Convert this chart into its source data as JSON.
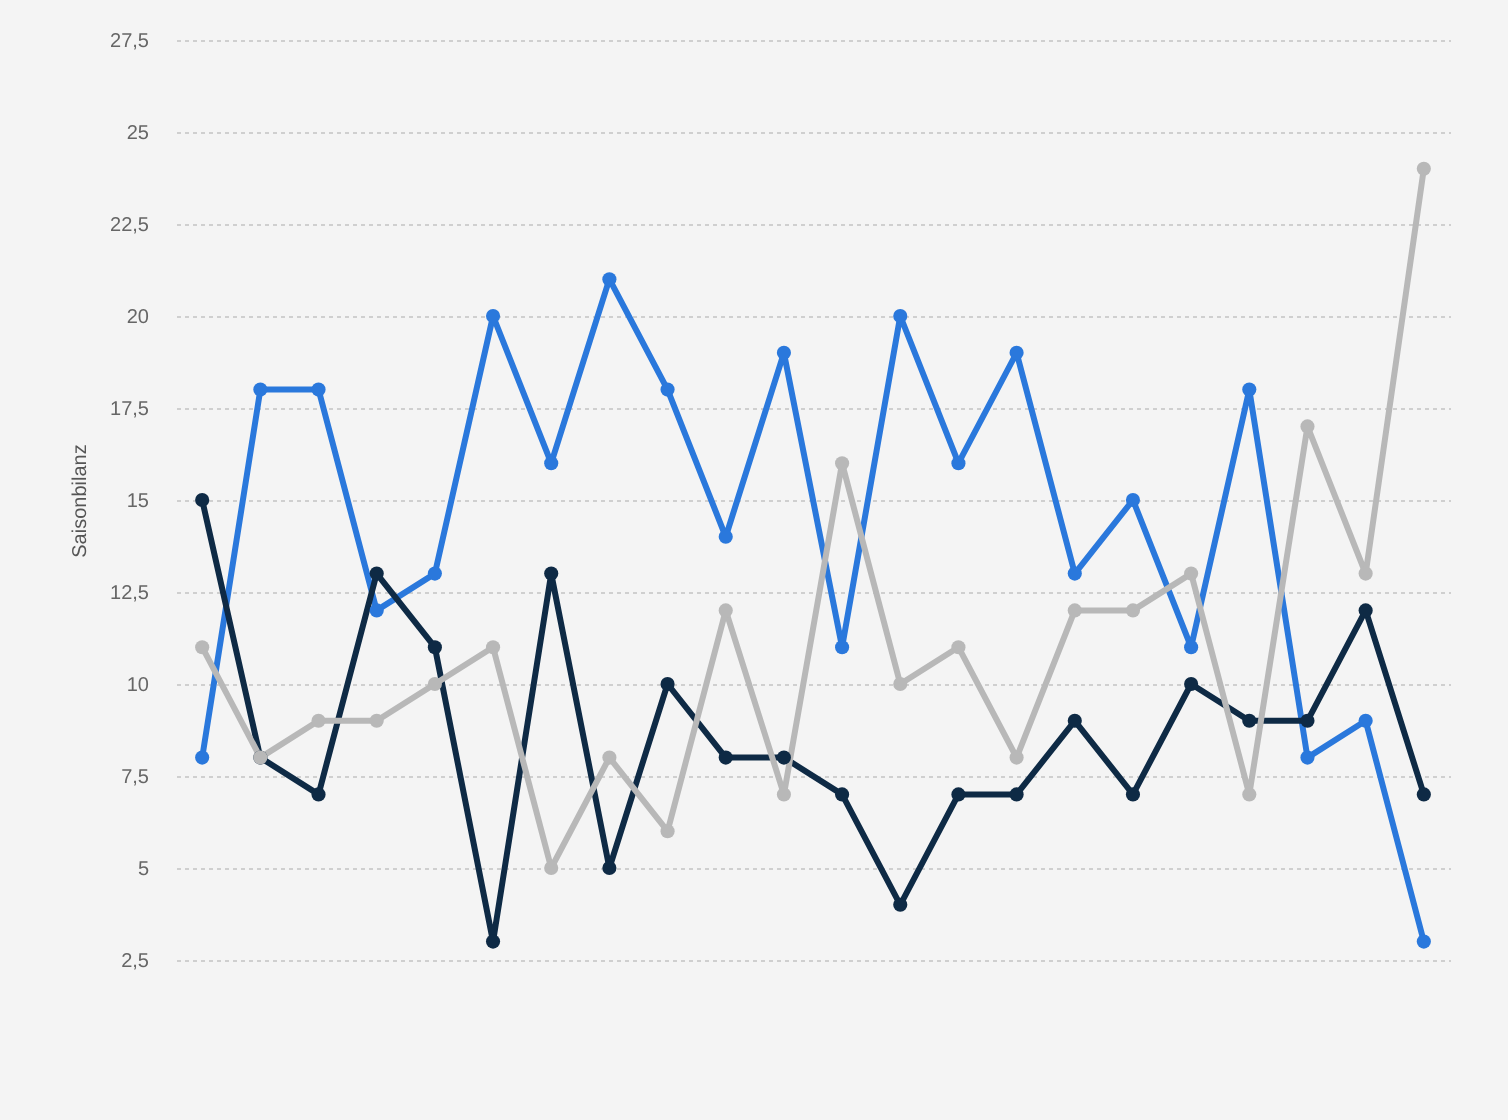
{
  "chart_data": {
    "type": "line",
    "ylabel": "Saisonbilanz",
    "categories": [
      null,
      null,
      null,
      null,
      null,
      null,
      null,
      null,
      null,
      null,
      null,
      null,
      null,
      null,
      null,
      null,
      null,
      null,
      null,
      null,
      null,
      null
    ],
    "series": [
      {
        "color": "#2a78dc",
        "values": [
          8,
          18,
          18,
          12,
          13,
          20,
          16,
          21,
          18,
          14,
          19,
          11,
          20,
          16,
          19,
          13,
          15,
          11,
          18,
          8,
          9,
          3
        ]
      },
      {
        "color": "#0e2a45",
        "values": [
          15,
          8,
          7,
          13,
          11,
          3,
          13,
          5,
          10,
          8,
          8,
          7,
          4,
          7,
          7,
          9,
          7,
          10,
          9,
          9,
          12,
          7
        ]
      },
      {
        "color": "#b8b8b8",
        "values": [
          11,
          8,
          9,
          9,
          10,
          11,
          5,
          8,
          6,
          12,
          7,
          16,
          10,
          11,
          8,
          12,
          12,
          13,
          7,
          17,
          13,
          24
        ]
      }
    ],
    "ylim": [
      2.5,
      27.5
    ],
    "yticks": [
      {
        "value": 2.5,
        "label": "2,5"
      },
      5,
      {
        "value": 7.5,
        "label": "7,5"
      },
      10,
      {
        "value": 12.5,
        "label": "12,5"
      },
      15,
      {
        "value": 17.5,
        "label": "17,5"
      },
      20,
      {
        "value": 22.5,
        "label": "22,5"
      },
      25,
      {
        "value": 27.5,
        "label": "27,5"
      }
    ],
    "grid": "y",
    "marker": "circle",
    "line_style": "solid",
    "tick_labels": "y"
  }
}
